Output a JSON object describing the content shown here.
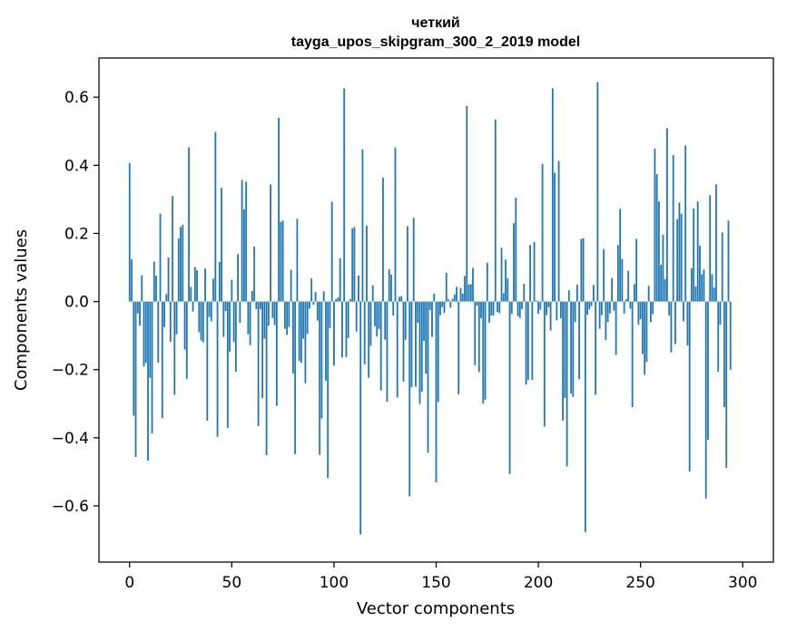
{
  "chart_data": {
    "type": "bar",
    "title": "четкий",
    "subtitle": "tayga_upos_skipgram_300_2_2019 model",
    "xlabel": "Vector components",
    "ylabel": "Components values",
    "xlim": [
      -15,
      315
    ],
    "ylim": [
      -0.765,
      0.715
    ],
    "xticks": [
      0,
      50,
      100,
      150,
      200,
      250,
      300
    ],
    "xtick_labels": [
      "0",
      "50",
      "100",
      "150",
      "200",
      "250",
      "300"
    ],
    "yticks": [
      -0.6,
      -0.4,
      -0.2,
      0.0,
      0.2,
      0.4,
      0.6
    ],
    "ytick_labels": [
      "−0.6",
      "−0.4",
      "−0.2",
      "0.0",
      "0.2",
      "0.4",
      "0.6"
    ],
    "grid": false,
    "bar_color": "#1f77b4",
    "series": [
      {
        "values": [
          0.407,
          0.124,
          -0.335,
          -0.456,
          -0.035,
          -0.071,
          0.077,
          -0.191,
          -0.18,
          -0.467,
          -0.224,
          -0.387,
          0.117,
          0.076,
          -0.179,
          0.258,
          -0.342,
          -0.075,
          0.022,
          0.129,
          -0.118,
          0.31,
          -0.274,
          -0.096,
          0.185,
          0.219,
          0.226,
          -0.141,
          -0.227,
          0.453,
          0.043,
          -0.029,
          0.101,
          0.092,
          -0.09,
          -0.114,
          -0.12,
          0.097,
          -0.35,
          -0.045,
          -0.058,
          0.067,
          0.498,
          -0.397,
          0.116,
          0.334,
          -0.104,
          -0.028,
          -0.371,
          -0.147,
          0.064,
          -0.119,
          -0.206,
          0.139,
          -0.062,
          0.357,
          0.271,
          0.352,
          -0.096,
          -0.128,
          0.031,
          0.161,
          -0.022,
          -0.366,
          -0.022,
          -0.283,
          -0.109,
          -0.451,
          -0.071,
          0.344,
          -0.048,
          -0.069,
          -0.306,
          0.539,
          0.234,
          0.238,
          -0.08,
          -0.098,
          -0.075,
          0.093,
          -0.211,
          -0.448,
          0.243,
          -0.174,
          -0.18,
          -0.109,
          -0.24,
          -0.095,
          -0.021,
          0.068,
          -0.009,
          0.028,
          -0.056,
          -0.45,
          -0.343,
          0.03,
          -0.232,
          -0.518,
          -0.078,
          0.293,
          -0.188,
          0.007,
          0.012,
          0.127,
          -0.164,
          0.626,
          -0.163,
          -0.107,
          0.007,
          0.215,
          0.219,
          -0.088,
          0.076,
          -0.684,
          0.447,
          -0.184,
          0.223,
          -0.224,
          -0.13,
          0.048,
          -0.072,
          -0.103,
          -0.08,
          -0.261,
          0.364,
          -0.112,
          -0.294,
          0.095,
          0.079,
          -0.041,
          0.452,
          -0.282,
          0.014,
          0.016,
          -0.235,
          -0.112,
          0.221,
          -0.572,
          -0.252,
          0.246,
          -0.25,
          -0.062,
          -0.301,
          -0.265,
          -0.115,
          -0.212,
          -0.444,
          -0.025,
          -0.104,
          0.023,
          -0.531,
          -0.295,
          -0.04,
          -0.016,
          -0.033,
          0.084,
          0.006,
          -0.018,
          0.008,
          0.021,
          0.043,
          -0.272,
          0.04,
          0.023,
          0.075,
          0.574,
          0.05,
          0.051,
          0.099,
          -0.187,
          -0.012,
          -0.207,
          -0.049,
          -0.3,
          -0.288,
          0.114,
          -0.062,
          -0.041,
          -0.041,
          0.535,
          -0.031,
          -0.034,
          0.158,
          0.024,
          0.123,
          0.068,
          -0.506,
          -0.036,
          0.23,
          0.305,
          -0.043,
          -0.048,
          -0.022,
          0.052,
          -0.244,
          -0.23,
          0.166,
          -0.23,
          0.175,
          0.003,
          -0.036,
          -0.024,
          0.404,
          -0.367,
          -0.04,
          -0.017,
          -0.085,
          0.626,
          0.378,
          -0.055,
          0.413,
          -0.049,
          -0.35,
          -0.283,
          -0.484,
          0.033,
          -0.27,
          -0.28,
          -0.06,
          0.05,
          -0.228,
          0.184,
          0.186,
          -0.677,
          -0.039,
          -0.023,
          -0.013,
          0.049,
          -0.274,
          0.644,
          -0.08,
          -0.04,
          0.154,
          -0.113,
          -0.06,
          -0.035,
          0.069,
          -0.027,
          -0.157,
          0.166,
          0.272,
          0.125,
          -0.035,
          0.007,
          0.09,
          -0.021,
          -0.31,
          0.051,
          0.184,
          -0.068,
          -0.052,
          -0.154,
          -0.215,
          -0.177,
          0.046,
          -0.06,
          -0.037,
          0.449,
          0.374,
          0.294,
          0.108,
          0.196,
          0.066,
          0.509,
          -0.041,
          -0.149,
          0.43,
          -0.125,
          0.242,
          0.291,
          0.258,
          -0.058,
          0.458,
          -0.129,
          -0.499,
          0.098,
          0.273,
          0.044,
          0.294,
          0.164,
          0.08,
          0.094,
          -0.578,
          -0.406,
          0.312,
          0.08,
          0.041,
          0.344,
          -0.206,
          -0.068,
          0.203,
          -0.31,
          -0.488,
          0.238,
          -0.2
        ]
      }
    ]
  }
}
